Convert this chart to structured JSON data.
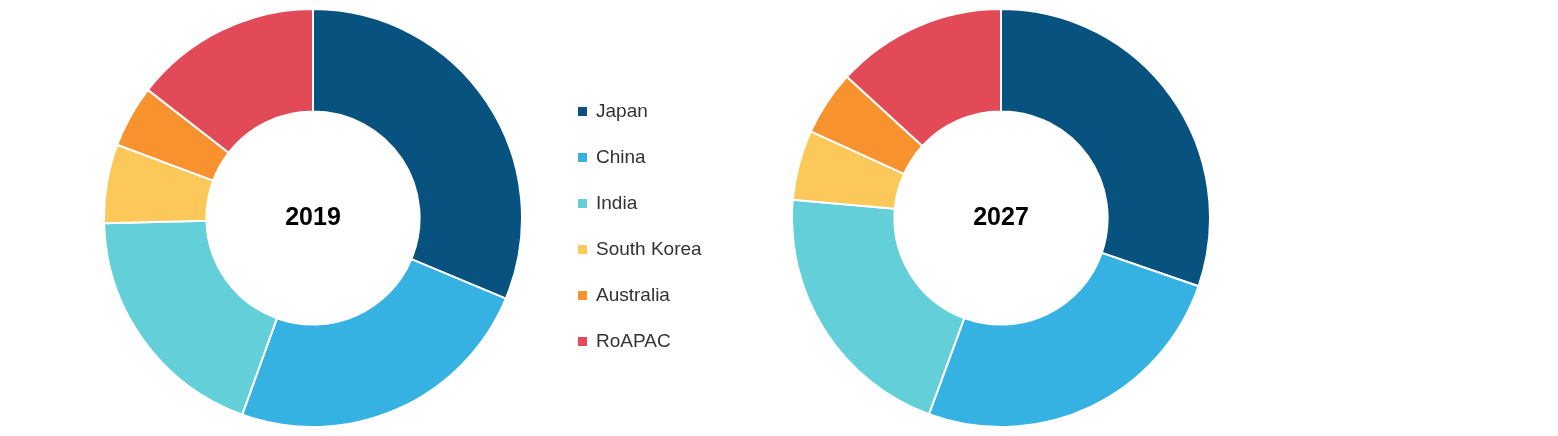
{
  "chart_data": [
    {
      "type": "donut",
      "title": "2019",
      "categories": [
        "Japan",
        "China",
        "India",
        "South Korea",
        "Australia",
        "RoAPAC"
      ],
      "values": [
        31.3,
        24.2,
        19.1,
        6.1,
        4.8,
        14.5
      ],
      "colors": [
        "#08527f",
        "#35b1e2",
        "#62cfd9",
        "#fdc85a",
        "#f7922f",
        "#e24a57"
      ],
      "legend": "right"
    },
    {
      "type": "donut",
      "title": "2027",
      "categories": [
        null,
        null,
        null,
        null,
        null,
        null
      ],
      "values": [
        30.3,
        25.3,
        20.8,
        5.4,
        5.0,
        13.2
      ],
      "colors": [
        "#08527f",
        "#35b1e2",
        "#62cfd9",
        "#fdc85a",
        "#f7922f",
        "#e24a57"
      ],
      "legend": false
    }
  ]
}
